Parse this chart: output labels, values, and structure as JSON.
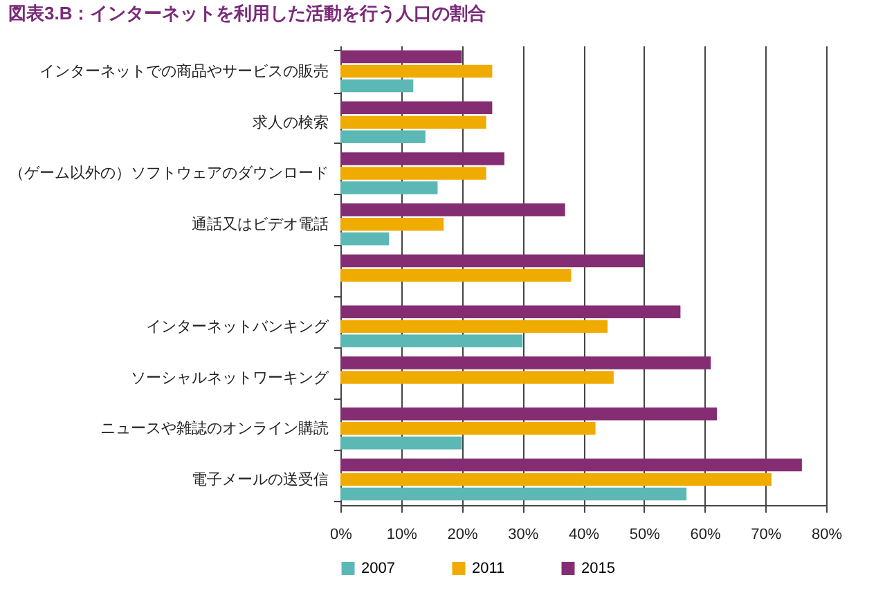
{
  "chart_data": {
    "type": "bar",
    "orientation": "horizontal",
    "title": "図表3.B：インターネットを利用した活動を行う人口の割合",
    "categories": [
      "インターネットでの商品やサービスの販売",
      "求人の検索",
      "（ゲーム以外の）ソフトウェアのダウンロード",
      "通話又はビデオ電話",
      null,
      "インターネットバンキング",
      "ソーシャルネットワーキング",
      "ニュースや雑誌のオンライン購読",
      "電子メールの送受信"
    ],
    "series": [
      {
        "name": "2007",
        "color": "#5bb8b4",
        "values": [
          12,
          14,
          16,
          8,
          null,
          30,
          null,
          20,
          57
        ]
      },
      {
        "name": "2011",
        "color": "#f0ab00",
        "values": [
          25,
          24,
          24,
          17,
          38,
          44,
          45,
          42,
          71
        ]
      },
      {
        "name": "2015",
        "color": "#842d72",
        "values": [
          20,
          25,
          27,
          37,
          50,
          56,
          61,
          62,
          76
        ]
      }
    ],
    "xlim": [
      0,
      80
    ],
    "xticks": [
      {
        "value": 0,
        "label": "0%"
      },
      {
        "value": 10,
        "label": "10%"
      },
      {
        "value": 20,
        "label": "20%"
      },
      {
        "value": 30,
        "label": "30%"
      },
      {
        "value": 40,
        "label": "40%"
      },
      {
        "value": 50,
        "label": "50%"
      },
      {
        "value": 60,
        "label": "60%"
      },
      {
        "value": 70,
        "label": "70%"
      },
      {
        "value": 80,
        "label": "80%"
      }
    ],
    "grid": "x",
    "legend": "bottom"
  }
}
